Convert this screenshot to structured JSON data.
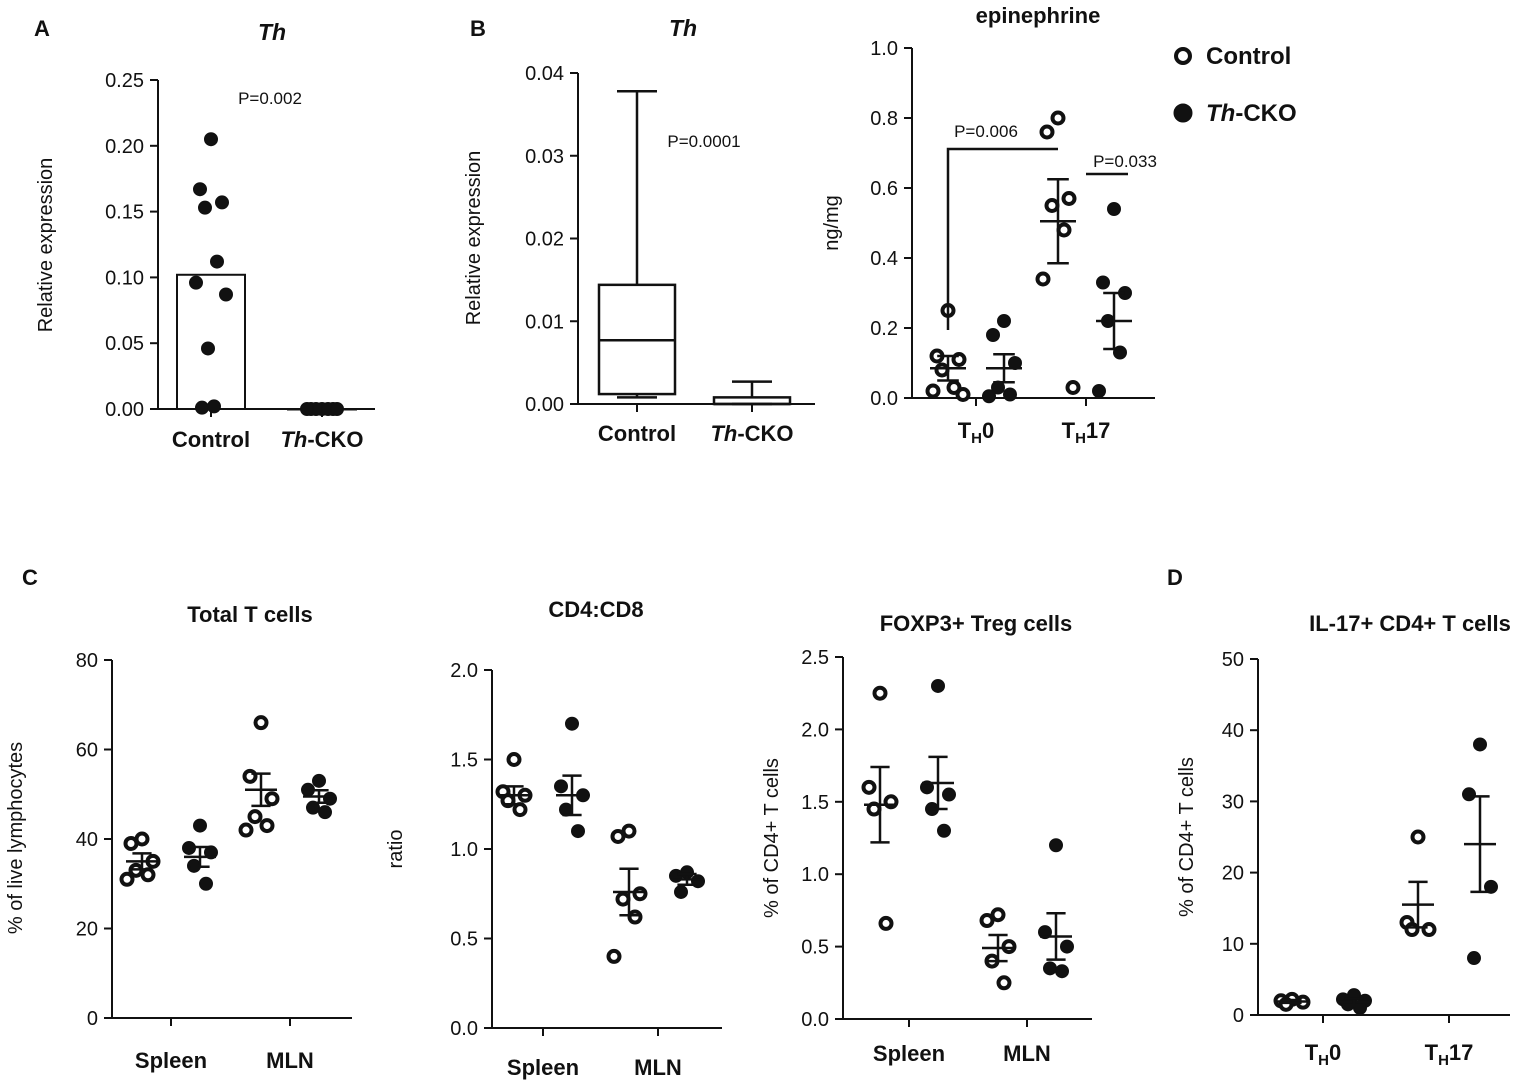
{
  "panel_labels": {
    "A": "A",
    "B": "B",
    "C": "C",
    "D": "D"
  },
  "legend": {
    "control": "Control",
    "cko_gene": "Th",
    "cko_suffix": "-CKO"
  },
  "colors": {
    "ink": "#111111",
    "background": "#ffffff",
    "open_fill": "#ffffff"
  },
  "chart_data": [
    {
      "id": "A",
      "type": "bar",
      "title": "Th",
      "ylabel": "Relative  expression",
      "ylim": [
        0,
        0.25
      ],
      "yticks": [
        "0.00",
        "0.05",
        "0.10",
        "0.15",
        "0.20",
        "0.25"
      ],
      "categories": [
        {
          "label": "Control"
        },
        {
          "gene": "Th",
          "suffix": "-CKO"
        }
      ],
      "bars": [
        0.102,
        0.0
      ],
      "points": [
        [
          0.205,
          0.167,
          0.157,
          0.153,
          0.112,
          0.096,
          0.087,
          0.046,
          0.002,
          0.001
        ],
        [
          0.0,
          0.0,
          0.0,
          0.0,
          0.0,
          0.0,
          0.0
        ]
      ],
      "annotations": [
        {
          "text": "P=0.002"
        }
      ]
    },
    {
      "id": "B1",
      "type": "box",
      "title": "Th",
      "ylabel": "Relative  expression",
      "ylim": [
        0,
        0.04
      ],
      "yticks": [
        "0.00",
        "0.01",
        "0.02",
        "0.03",
        "0.04"
      ],
      "categories": [
        {
          "label": "Control"
        },
        {
          "gene": "Th",
          "suffix": "-CKO"
        }
      ],
      "boxes": [
        {
          "min": 0.0008,
          "q1": 0.0012,
          "median": 0.0077,
          "q3": 0.0144,
          "max": 0.0378
        },
        {
          "min": 0.0,
          "q1": 0.0,
          "median": 0.0,
          "q3": 0.0008,
          "max": 0.0027
        }
      ],
      "annotations": [
        {
          "text": "P=0.0001"
        }
      ]
    },
    {
      "id": "B2",
      "type": "scatter",
      "title": "epinephrine",
      "ylabel": "ng/mg",
      "ylim": [
        0,
        1.0
      ],
      "yticks": [
        "0.0",
        "0.2",
        "0.4",
        "0.6",
        "0.8",
        "1.0"
      ],
      "groups": [
        {
          "main": "T",
          "sub": "H",
          "rest": "0"
        },
        {
          "main": "T",
          "sub": "H",
          "rest": "17"
        }
      ],
      "series": [
        {
          "name": "Control",
          "filled": false,
          "values": [
            [
              0.25,
              0.12,
              0.11,
              0.08,
              0.03,
              0.02,
              0.01
            ],
            [
              0.8,
              0.76,
              0.57,
              0.55,
              0.48,
              0.34,
              0.03
            ]
          ],
          "mean": [
            0.085,
            0.505
          ],
          "sem": [
            0.035,
            0.12
          ]
        },
        {
          "name": "Th-CKO",
          "filled": true,
          "values": [
            [
              0.22,
              0.18,
              0.1,
              0.03,
              0.01,
              0.005
            ],
            [
              0.54,
              0.33,
              0.3,
              0.22,
              0.13,
              0.02
            ]
          ],
          "mean": [
            0.085,
            0.22
          ],
          "sem": [
            0.04,
            0.08
          ]
        }
      ],
      "annotations": [
        {
          "text": "P=0.006"
        },
        {
          "text": "P=0.033"
        }
      ]
    },
    {
      "id": "C1",
      "type": "scatter",
      "title": "Total T cells",
      "ylabel": "% of live lymphocytes",
      "ylim": [
        0,
        80
      ],
      "yticks": [
        "0",
        "20",
        "40",
        "60",
        "80"
      ],
      "groups": [
        {
          "label": "Spleen"
        },
        {
          "label": "MLN"
        }
      ],
      "series": [
        {
          "name": "Control",
          "filled": false,
          "values": [
            [
              40,
              39,
              35,
              33,
              32,
              31
            ],
            [
              66,
              54,
              49,
              45,
              43,
              42
            ]
          ],
          "mean": [
            35,
            51
          ],
          "sem": [
            1.8,
            3.6
          ]
        },
        {
          "name": "Th-CKO",
          "filled": true,
          "values": [
            [
              43,
              38,
              37,
              34,
              30
            ],
            [
              53,
              51,
              49,
              47,
              46
            ]
          ],
          "mean": [
            36,
            49.5
          ],
          "sem": [
            2.2,
            1.4
          ]
        }
      ]
    },
    {
      "id": "C2",
      "type": "scatter",
      "title": "CD4:CD8",
      "ylabel": "ratio",
      "ylim": [
        0,
        2.0
      ],
      "yticks": [
        "0.0",
        "0.5",
        "1.0",
        "1.5",
        "2.0"
      ],
      "groups": [
        {
          "label": "Spleen"
        },
        {
          "label": "MLN"
        }
      ],
      "series": [
        {
          "name": "Control",
          "filled": false,
          "values": [
            [
              1.5,
              1.32,
              1.3,
              1.27,
              1.22
            ],
            [
              1.1,
              1.07,
              0.75,
              0.72,
              0.62,
              0.4
            ]
          ],
          "mean": [
            1.3,
            0.76
          ],
          "sem": [
            0.05,
            0.13
          ]
        },
        {
          "name": "Th-CKO",
          "filled": true,
          "values": [
            [
              1.7,
              1.35,
              1.3,
              1.22,
              1.1
            ],
            [
              0.87,
              0.85,
              0.82,
              0.76
            ]
          ],
          "mean": [
            1.3,
            0.83
          ],
          "sem": [
            0.11,
            0.03
          ]
        }
      ]
    },
    {
      "id": "C3",
      "type": "scatter",
      "title": "FOXP3+ Treg cells",
      "ylabel": "% of CD4+ T cells",
      "ylim": [
        0,
        2.5
      ],
      "yticks": [
        "0.0",
        "0.5",
        "1.0",
        "1.5",
        "2.0",
        "2.5"
      ],
      "groups": [
        {
          "label": "Spleen"
        },
        {
          "label": "MLN"
        }
      ],
      "series": [
        {
          "name": "Control",
          "filled": false,
          "values": [
            [
              2.25,
              1.6,
              1.5,
              1.45,
              0.66
            ],
            [
              0.72,
              0.68,
              0.5,
              0.4,
              0.25
            ]
          ],
          "mean": [
            1.48,
            0.49
          ],
          "sem": [
            0.26,
            0.09
          ]
        },
        {
          "name": "Th-CKO",
          "filled": true,
          "values": [
            [
              2.3,
              1.6,
              1.55,
              1.45,
              1.3
            ],
            [
              1.2,
              0.6,
              0.5,
              0.35,
              0.33
            ]
          ],
          "mean": [
            1.63,
            0.57
          ],
          "sem": [
            0.18,
            0.16
          ]
        }
      ]
    },
    {
      "id": "D",
      "type": "scatter",
      "title": "IL-17+ CD4+  T cells",
      "ylabel": "% of CD4+ T cells",
      "ylim": [
        0,
        50
      ],
      "yticks": [
        "0",
        "10",
        "20",
        "30",
        "40",
        "50"
      ],
      "groups": [
        {
          "main": "T",
          "sub": "H",
          "rest": "0"
        },
        {
          "main": "T",
          "sub": "H",
          "rest": "17"
        }
      ],
      "series": [
        {
          "name": "Control",
          "filled": false,
          "values": [
            [
              2.2,
              2.0,
              1.8,
              1.5
            ],
            [
              25,
              13,
              12,
              12
            ]
          ],
          "mean": [
            1.9,
            15.5
          ],
          "sem": [
            0.2,
            3.2
          ]
        },
        {
          "name": "Th-CKO",
          "filled": true,
          "values": [
            [
              2.8,
              2.2,
              2.0,
              1.5,
              1.0
            ],
            [
              38,
              31,
              18,
              8
            ]
          ],
          "mean": [
            1.8,
            24
          ],
          "sem": [
            0.5,
            6.7
          ]
        }
      ]
    }
  ]
}
